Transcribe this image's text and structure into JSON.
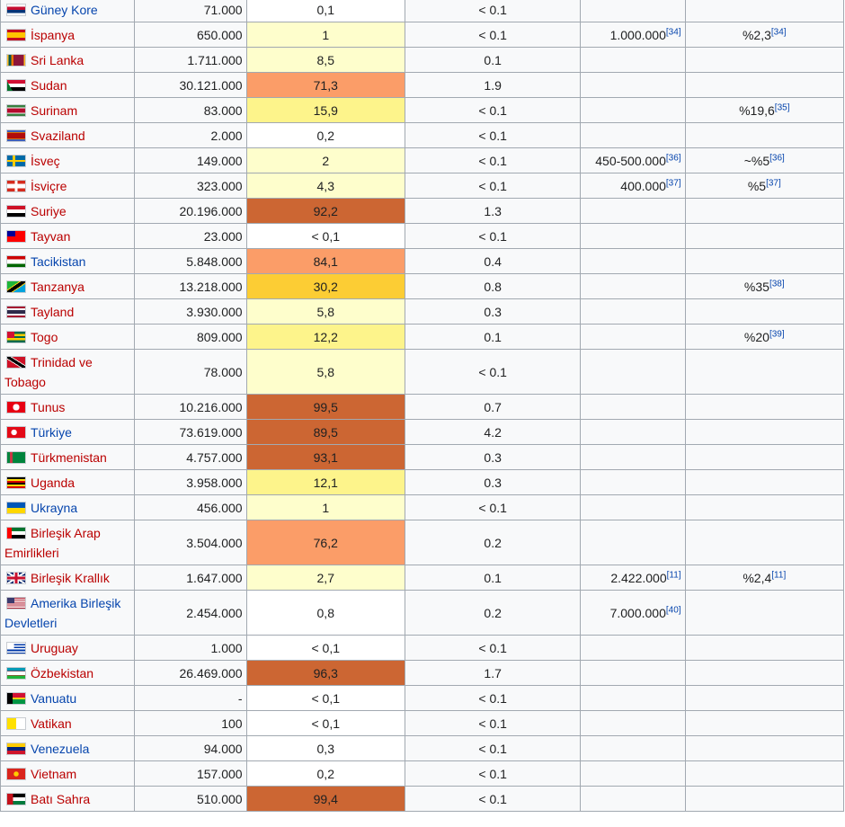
{
  "colors": {
    "link_red": "#ba0000",
    "link_blue": "#0645ad",
    "border": "#a2a9b1",
    "heat_scale": [
      "#ffffff",
      "#fefecc",
      "#fdf48b",
      "#fccd34",
      "#fb9d68",
      "#cc6633"
    ]
  },
  "rows": [
    {
      "country": "Güney Kore",
      "link": "blue",
      "flag_icon": "south-korea-flag-icon",
      "flag": "linear-gradient(#fff 20%,#c60c30 20% 50%,#003478 50% 80%,#fff 80%)",
      "pop": "71.000",
      "pct": "0,1",
      "pct_bg": "#ffffff",
      "world": "< 0.1",
      "est": "",
      "est_ref": "",
      "estp": "",
      "estp_ref": ""
    },
    {
      "country": "İspanya",
      "link": "red",
      "flag_icon": "spain-flag-icon",
      "flag": "linear-gradient(#c60b1e 25%,#ffc400 25% 75%,#c60b1e 75%)",
      "pop": "650.000",
      "pct": "1",
      "pct_bg": "#fefecc",
      "world": "< 0.1",
      "est": "1.000.000",
      "est_ref": "[34]",
      "estp": "%2,3",
      "estp_ref": "[34]"
    },
    {
      "country": "Sri Lanka",
      "link": "red",
      "flag_icon": "sri-lanka-flag-icon",
      "flag": "linear-gradient(90deg,#ffbe29 8%,#00534e 8% 22%,#eb7400 22% 36%,#8d153a 36% 92%,#ffbe29 92%)",
      "pop": "1.711.000",
      "pct": "8,5",
      "pct_bg": "#fefecc",
      "world": "0.1",
      "est": "",
      "est_ref": "",
      "estp": "",
      "estp_ref": ""
    },
    {
      "country": "Sudan",
      "link": "red",
      "flag_icon": "sudan-flag-icon",
      "flag": "linear-gradient(60deg,#007229 22%,transparent 22%),linear-gradient(#d21034 33%,#ffffff 33% 66%,#000000 66%)",
      "pop": "30.121.000",
      "pct": "71,3",
      "pct_bg": "#fb9d68",
      "world": "1.9",
      "est": "",
      "est_ref": "",
      "estp": "",
      "estp_ref": ""
    },
    {
      "country": "Surinam",
      "link": "red",
      "flag_icon": "suriname-flag-icon",
      "flag": "linear-gradient(#377e3f 20%,#fff 20% 28%,#b40a2d 28% 72%,#fff 72% 80%,#377e3f 80%)",
      "pop": "83.000",
      "pct": "15,9",
      "pct_bg": "#fdf48b",
      "world": "< 0.1",
      "est": "",
      "est_ref": "",
      "estp": "%19,6",
      "estp_ref": "[35]"
    },
    {
      "country": "Svaziland",
      "link": "red",
      "flag_icon": "eswatini-flag-icon",
      "flag": "linear-gradient(#3e5eb9 15%,#ffd900 15% 22%,#b10c0c 22% 78%,#ffd900 78% 85%,#3e5eb9 85%)",
      "pop": "2.000",
      "pct": "0,2",
      "pct_bg": "#ffffff",
      "world": "< 0.1",
      "est": "",
      "est_ref": "",
      "estp": "",
      "estp_ref": ""
    },
    {
      "country": "İsveç",
      "link": "red",
      "flag_icon": "sweden-flag-icon",
      "flag": "linear-gradient(90deg,transparent 31%,#fecc00 31% 44%,transparent 44%),linear-gradient(#006aa7 40%,#fecc00 40% 60%,#006aa7 60%)",
      "pop": "149.000",
      "pct": "2",
      "pct_bg": "#fefecc",
      "world": "< 0.1",
      "est": "450-500.000",
      "est_ref": "[36]",
      "estp": "~%5",
      "estp_ref": "[36]"
    },
    {
      "country": "İsviçre",
      "link": "red",
      "flag_icon": "switzerland-flag-icon",
      "flag": "linear-gradient(90deg,transparent 42%,#fff 42% 58%,transparent 58%),linear-gradient(transparent 30%,#fff 30% 70%,transparent 70%),linear-gradient(#d52b1e,#d52b1e)",
      "pop": "323.000",
      "pct": "4,3",
      "pct_bg": "#fefecc",
      "world": "< 0.1",
      "est": "400.000",
      "est_ref": "[37]",
      "estp": "%5",
      "estp_ref": "[37]"
    },
    {
      "country": "Suriye",
      "link": "red",
      "flag_icon": "syria-flag-icon",
      "flag": "linear-gradient(#ce1126 33%,#ffffff 33% 66%,#000000 66%)",
      "pop": "20.196.000",
      "pct": "92,2",
      "pct_bg": "#cc6633",
      "world": "1.3",
      "est": "",
      "est_ref": "",
      "estp": "",
      "estp_ref": ""
    },
    {
      "country": "Tayvan",
      "link": "red",
      "flag_icon": "taiwan-flag-icon",
      "flag": "linear-gradient(#000095,#000095) 0 0/45% 50% no-repeat,linear-gradient(#fe0000,#fe0000)",
      "pop": "23.000",
      "pct": "< 0,1",
      "pct_bg": "#ffffff",
      "world": "< 0.1",
      "est": "",
      "est_ref": "",
      "estp": "",
      "estp_ref": ""
    },
    {
      "country": "Tacikistan",
      "link": "blue",
      "flag_icon": "tajikistan-flag-icon",
      "flag": "linear-gradient(#cc0000 28%,#ffffff 28% 72%,#006600 72%)",
      "pop": "5.848.000",
      "pct": "84,1",
      "pct_bg": "#fb9d68",
      "world": "0.4",
      "est": "",
      "est_ref": "",
      "estp": "",
      "estp_ref": ""
    },
    {
      "country": "Tanzanya",
      "link": "red",
      "flag_icon": "tanzania-flag-icon",
      "flag": "linear-gradient(146deg,#1eb53a 36%,#fcd116 36% 41%,#000 41% 59%,#fcd116 59% 64%,#00a3dd 64%)",
      "pop": "13.218.000",
      "pct": "30,2",
      "pct_bg": "#fccd34",
      "world": "0.8",
      "est": "",
      "est_ref": "",
      "estp": "%35",
      "estp_ref": "[38]"
    },
    {
      "country": "Tayland",
      "link": "red",
      "flag_icon": "thailand-flag-icon",
      "flag": "linear-gradient(#a51931 16%,#f4f5f8 16% 33%,#2d2a4a 33% 67%,#f4f5f8 67% 84%,#a51931 84%)",
      "pop": "3.930.000",
      "pct": "5,8",
      "pct_bg": "#fefecc",
      "world": "0.3",
      "est": "",
      "est_ref": "",
      "estp": "",
      "estp_ref": ""
    },
    {
      "country": "Togo",
      "link": "red",
      "flag_icon": "togo-flag-icon",
      "flag": "linear-gradient(#d21034,#d21034) 0 0/40% 60% no-repeat,linear-gradient(#006a4e 20%,#ffce00 20% 40%,#006a4e 40% 60%,#ffce00 60% 80%,#006a4e 80%)",
      "pop": "809.000",
      "pct": "12,2",
      "pct_bg": "#fdf48b",
      "world": "0.1",
      "est": "",
      "est_ref": "",
      "estp": "%20",
      "estp_ref": "[39]"
    },
    {
      "country": "Trinidad ve Tobago",
      "link": "red",
      "tall": true,
      "flag_icon": "trinidad-tobago-flag-icon",
      "flag": "linear-gradient(32deg,#ce1126 38%,#fff 38% 42%,#000 42% 58%,#fff 58% 62%,#ce1126 62%)",
      "pop": "78.000",
      "pct": "5,8",
      "pct_bg": "#fefecc",
      "world": "< 0.1",
      "est": "",
      "est_ref": "",
      "estp": "",
      "estp_ref": ""
    },
    {
      "country": "Tunus",
      "link": "red",
      "flag_icon": "tunisia-flag-icon",
      "flag": "radial-gradient(circle at 50% 50%,#ffffff 30%,transparent 32%),linear-gradient(#e70013,#e70013)",
      "pop": "10.216.000",
      "pct": "99,5",
      "pct_bg": "#cc6633",
      "world": "0.7",
      "est": "",
      "est_ref": "",
      "estp": "",
      "estp_ref": ""
    },
    {
      "country": "Türkiye",
      "link": "blue",
      "flag_icon": "turkey-flag-icon",
      "flag": "radial-gradient(circle at 38% 50%,#ffffff 22%,transparent 24%),linear-gradient(#e30a17,#e30a17)",
      "pop": "73.619.000",
      "pct": "89,5",
      "pct_bg": "#cc6633",
      "world": "4.2",
      "est": "",
      "est_ref": "",
      "estp": "",
      "estp_ref": ""
    },
    {
      "country": "Türkmenistan",
      "link": "red",
      "flag_icon": "turkmenistan-flag-icon",
      "flag": "linear-gradient(90deg,transparent 14%,#ca3745 14% 30%,transparent 30%),linear-gradient(#00843d,#00843d)",
      "pop": "4.757.000",
      "pct": "93,1",
      "pct_bg": "#cc6633",
      "world": "0.3",
      "est": "",
      "est_ref": "",
      "estp": "",
      "estp_ref": ""
    },
    {
      "country": "Uganda",
      "link": "red",
      "flag_icon": "uganda-flag-icon",
      "flag": "linear-gradient(#000 16%,#fcdc04 16% 33%,#d90000 33% 50%,#000 50% 67%,#fcdc04 67% 84%,#d90000 84%)",
      "pop": "3.958.000",
      "pct": "12,1",
      "pct_bg": "#fdf48b",
      "world": "0.3",
      "est": "",
      "est_ref": "",
      "estp": "",
      "estp_ref": ""
    },
    {
      "country": "Ukrayna",
      "link": "blue",
      "flag_icon": "ukraine-flag-icon",
      "flag": "linear-gradient(#0057b7 50%,#ffd700 50%)",
      "pop": "456.000",
      "pct": "1",
      "pct_bg": "#fefecc",
      "world": "< 0.1",
      "est": "",
      "est_ref": "",
      "estp": "",
      "estp_ref": ""
    },
    {
      "country": "Birleşik Arap Emirlikleri",
      "link": "red",
      "tall": true,
      "flag_icon": "uae-flag-icon",
      "flag": "linear-gradient(#ff0000,#ff0000) 0 0/26% 100% no-repeat,linear-gradient(#00732f 33%,#ffffff 33% 66%,#000000 66%)",
      "pop": "3.504.000",
      "pct": "76,2",
      "pct_bg": "#fb9d68",
      "world": "0.2",
      "est": "",
      "est_ref": "",
      "estp": "",
      "estp_ref": ""
    },
    {
      "country": "Birleşik Krallık",
      "link": "red",
      "flag_icon": "united-kingdom-flag-icon",
      "flag": "linear-gradient(90deg,transparent 42%,#c8102e 42% 58%,transparent 58%),linear-gradient(transparent 38%,#c8102e 38% 62%,transparent 62%),linear-gradient(90deg,transparent 36%,#fff 36% 64%,transparent 64%),linear-gradient(transparent 30%,#fff 30% 70%,transparent 70%),linear-gradient(33deg,transparent 45%,#fff 45% 55%,transparent 55%),linear-gradient(-33deg,transparent 45%,#fff 45% 55%,transparent 55%),linear-gradient(#012169,#012169)",
      "pop": "1.647.000",
      "pct": "2,7",
      "pct_bg": "#fefecc",
      "world": "0.1",
      "est": "2.422.000",
      "est_ref": "[11]",
      "estp": "%2,4",
      "estp_ref": "[11]"
    },
    {
      "country": "Amerika Birleşik Devletleri",
      "link": "blue",
      "tall": true,
      "flag_icon": "united-states-flag-icon",
      "flag": "linear-gradient(#3c3b6e,#3c3b6e) 0 0/42% 54% no-repeat,repeating-linear-gradient(#b22234 0 1.08px,#ffffff 1.08px 2.16px)",
      "pop": "2.454.000",
      "pct": "0,8",
      "pct_bg": "#ffffff",
      "world": "0.2",
      "est": "7.000.000",
      "est_ref": "[40]",
      "estp": "",
      "estp_ref": ""
    },
    {
      "country": "Uruguay",
      "link": "red",
      "flag_icon": "uruguay-flag-icon",
      "flag": "linear-gradient(#ffffff,#ffffff) 0 0/38% 55% no-repeat,repeating-linear-gradient(#ffffff 0 1.55px,#0038a8 1.55px 3.1px)",
      "pop": "1.000",
      "pct": "< 0,1",
      "pct_bg": "#ffffff",
      "world": "< 0.1",
      "est": "",
      "est_ref": "",
      "estp": "",
      "estp_ref": ""
    },
    {
      "country": "Özbekistan",
      "link": "red",
      "flag_icon": "uzbekistan-flag-icon",
      "flag": "linear-gradient(#0099b5 31%,#ce1126 31% 35%,#ffffff 35% 65%,#ce1126 65% 69%,#1eb53a 69%)",
      "pop": "26.469.000",
      "pct": "96,3",
      "pct_bg": "#cc6633",
      "world": "1.7",
      "est": "",
      "est_ref": "",
      "estp": "",
      "estp_ref": ""
    },
    {
      "country": "Vanuatu",
      "link": "blue",
      "flag_icon": "vanuatu-flag-icon",
      "flag": "linear-gradient(90deg,#000000 30%,transparent 30%),linear-gradient(#d21034 42%,#fdce12 42% 58%,#009543 58%)",
      "pop": "-",
      "pct": "< 0,1",
      "pct_bg": "#ffffff",
      "world": "< 0.1",
      "est": "",
      "est_ref": "",
      "estp": "",
      "estp_ref": ""
    },
    {
      "country": "Vatikan",
      "link": "red",
      "flag_icon": "vatican-flag-icon",
      "flag": "linear-gradient(90deg,#ffe000 50%,#ffffff 50%)",
      "pop": "100",
      "pct": "< 0,1",
      "pct_bg": "#ffffff",
      "world": "< 0.1",
      "est": "",
      "est_ref": "",
      "estp": "",
      "estp_ref": ""
    },
    {
      "country": "Venezuela",
      "link": "blue",
      "flag_icon": "venezuela-flag-icon",
      "flag": "linear-gradient(#ffcc00 33%,#00247d 33% 66%,#cf142b 66%)",
      "pop": "94.000",
      "pct": "0,3",
      "pct_bg": "#ffffff",
      "world": "< 0.1",
      "est": "",
      "est_ref": "",
      "estp": "",
      "estp_ref": ""
    },
    {
      "country": "Vietnam",
      "link": "red",
      "flag_icon": "vietnam-flag-icon",
      "flag": "radial-gradient(circle at 50% 50%,#ffcd00 22%,transparent 25%),linear-gradient(#da251d,#da251d)",
      "pop": "157.000",
      "pct": "0,2",
      "pct_bg": "#ffffff",
      "world": "< 0.1",
      "est": "",
      "est_ref": "",
      "estp": "",
      "estp_ref": ""
    },
    {
      "country": "Batı Sahra",
      "link": "red",
      "flag_icon": "western-sahara-flag-icon",
      "flag": "linear-gradient(90deg,#c4111b 32%,transparent 32%),linear-gradient(#000 33%,#fff 33% 66%,#007a3d 66%)",
      "pop": "510.000",
      "pct": "99,4",
      "pct_bg": "#cc6633",
      "world": "< 0.1",
      "est": "",
      "est_ref": "",
      "estp": "",
      "estp_ref": ""
    }
  ]
}
